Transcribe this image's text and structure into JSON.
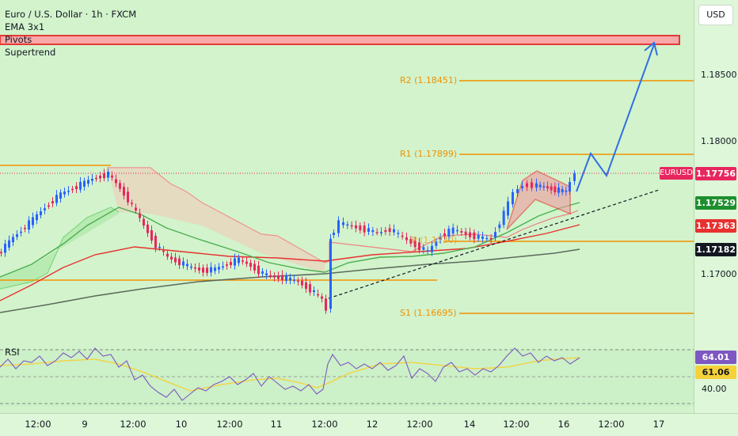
{
  "legend": {
    "symbol": "Euro / U.S. Dollar · 1h · FXCM",
    "indicators": [
      "EMA 3x1",
      "Pivots",
      "Supertrend"
    ]
  },
  "currency": "USD",
  "price_ticks": [
    "1.18500",
    "1.18000",
    "1.17000"
  ],
  "price_labels": [
    {
      "text": "1.17756",
      "color": "#e8265e"
    },
    {
      "text": "1.17529",
      "color": "#1e8f2e"
    },
    {
      "text": "1.17363",
      "color": "#e8312f"
    },
    {
      "text": "1.17182",
      "color": "#131722"
    }
  ],
  "symbol_tag": "EURUSD",
  "pivots": {
    "r2": "R2 (1.18451)",
    "r1": "R1 (1.17899)",
    "p": "P (1.1730)",
    "s1": "S1 (1.16695)"
  },
  "time_ticks": [
    "12:00",
    "9",
    "12:00",
    "10",
    "12:00",
    "11",
    "12:00",
    "12",
    "12:00",
    "14",
    "12:00",
    "16",
    "12:00",
    "17"
  ],
  "rsi": {
    "label": "RSI",
    "value_main": "64.01",
    "value_signal": "61.06",
    "level_low": "40.00",
    "color_main": "#7e57c2",
    "color_signal": "#f5d13a"
  },
  "colors": {
    "bull": "#2962ff",
    "bear": "#e8265e",
    "pivot": "#f29100",
    "ema_fast": "#4caf50",
    "ema_mid": "#e8312f",
    "ema_slow": "#5d6b5d",
    "projection": "#2f6fe4"
  }
}
